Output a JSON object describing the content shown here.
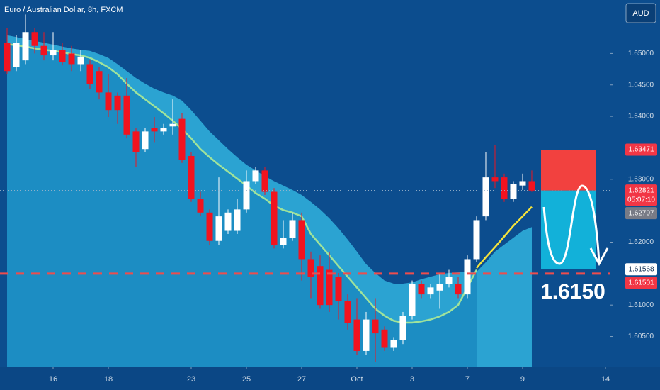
{
  "chart_data": {
    "type": "candlestick",
    "title": "Euro / Australian Dollar, 8h, FXCM",
    "currency": "AUD",
    "x": [
      0,
      1,
      2,
      3,
      4,
      5,
      6,
      7,
      8,
      9,
      10,
      11,
      12,
      13,
      14,
      15,
      16,
      17,
      18,
      19,
      20,
      21,
      22,
      23,
      24,
      25,
      26,
      27,
      28,
      29,
      30,
      31,
      32,
      33,
      34,
      35,
      36,
      37,
      38,
      39,
      40,
      41,
      42,
      43,
      44,
      45,
      46,
      47,
      48,
      49,
      50,
      51,
      52,
      53,
      54,
      55,
      56,
      57
    ],
    "open": [
      1.6517,
      1.6478,
      1.6489,
      1.6534,
      1.6512,
      1.6497,
      1.6506,
      1.65,
      1.6483,
      1.6483,
      1.6472,
      1.6438,
      1.6433,
      1.6433,
      1.6376,
      1.6348,
      1.6382,
      1.6376,
      1.6384,
      1.6396,
      1.6337,
      1.6269,
      1.6247,
      1.6202,
      1.6218,
      1.6218,
      1.6252,
      1.6297,
      1.6314,
      1.628,
      1.6196,
      1.6207,
      1.6235,
      1.6173,
      1.6162,
      1.6156,
      1.6145,
      1.6106,
      1.6077,
      1.6027,
      1.6077,
      1.6061,
      1.6032,
      1.6044,
      1.6083,
      1.6134,
      1.6117,
      1.6123,
      1.6134,
      1.6134,
      1.6117,
      1.6173,
      1.6241,
      1.6303,
      1.6303,
      1.6269,
      1.629,
      1.6297
    ],
    "high": [
      1.654,
      1.6529,
      1.6562,
      1.654,
      1.6534,
      1.6534,
      1.6517,
      1.6512,
      1.6506,
      1.6489,
      1.6478,
      1.6467,
      1.6438,
      1.6461,
      1.6382,
      1.6382,
      1.6399,
      1.6388,
      1.6427,
      1.6405,
      1.6343,
      1.628,
      1.6252,
      1.6303,
      1.6252,
      1.6269,
      1.6314,
      1.632,
      1.632,
      1.6286,
      1.6235,
      1.6247,
      1.6247,
      1.6185,
      1.6179,
      1.6185,
      1.6151,
      1.6117,
      1.6111,
      1.6089,
      1.6111,
      1.6066,
      1.6049,
      1.6089,
      1.6139,
      1.6139,
      1.6134,
      1.6151,
      1.6156,
      1.6145,
      1.6179,
      1.6241,
      1.6343,
      1.6354,
      1.6309,
      1.6297,
      1.6309,
      1.6314
    ],
    "low": [
      1.6467,
      1.6472,
      1.6483,
      1.65,
      1.6489,
      1.6489,
      1.6481,
      1.6472,
      1.6472,
      1.6444,
      1.6427,
      1.6399,
      1.6388,
      1.6365,
      1.632,
      1.6343,
      1.6359,
      1.6371,
      1.6371,
      1.6326,
      1.6264,
      1.6241,
      1.6196,
      1.6196,
      1.6213,
      1.6213,
      1.6247,
      1.6292,
      1.6275,
      1.619,
      1.619,
      1.6202,
      1.6139,
      1.6111,
      1.6094,
      1.6089,
      1.6077,
      1.6061,
      1.6021,
      1.6021,
      1.601,
      1.6027,
      1.6027,
      1.6038,
      1.6077,
      1.6111,
      1.6111,
      1.6094,
      1.6128,
      1.6111,
      1.6111,
      1.6168,
      1.6235,
      1.6286,
      1.6264,
      1.6264,
      1.6283,
      1.628
    ],
    "close": [
      1.6472,
      1.6517,
      1.6534,
      1.6512,
      1.6497,
      1.6506,
      1.6486,
      1.6483,
      1.6495,
      1.6452,
      1.6438,
      1.641,
      1.641,
      1.6371,
      1.6343,
      1.6376,
      1.6376,
      1.6382,
      1.6388,
      1.6331,
      1.6269,
      1.6247,
      1.6202,
      1.6241,
      1.6247,
      1.6252,
      1.6297,
      1.6314,
      1.628,
      1.6196,
      1.6207,
      1.6235,
      1.6173,
      1.6145,
      1.61,
      1.61,
      1.6106,
      1.6072,
      1.6027,
      1.6077,
      1.6055,
      1.6032,
      1.6044,
      1.6083,
      1.6134,
      1.6117,
      1.6128,
      1.6134,
      1.6145,
      1.6117,
      1.6173,
      1.6235,
      1.6303,
      1.6297,
      1.6269,
      1.6292,
      1.6297,
      1.6282
    ],
    "up_color": "#ffffff",
    "down_color": "#f2131f",
    "overlays": [
      {
        "type": "area",
        "color": "#2ba3d2",
        "values": [
          1.6529,
          1.6526,
          1.6523,
          1.652,
          1.6517,
          1.6514,
          1.6511,
          1.6508,
          1.6506,
          1.6504,
          1.6499,
          1.6493,
          1.6483,
          1.6472,
          1.6461,
          1.6452,
          1.6444,
          1.6438,
          1.6433,
          1.6425,
          1.641,
          1.6393,
          1.6376,
          1.6362,
          1.6348,
          1.6335,
          1.6323,
          1.6314,
          1.6305,
          1.6297,
          1.629,
          1.6283,
          1.6275,
          1.6264,
          1.6252,
          1.6238,
          1.6222,
          1.6204,
          1.6185,
          1.6165,
          1.6151,
          1.6139,
          1.6134,
          1.6134,
          1.6136,
          1.6141,
          1.6145,
          1.6149,
          1.6151,
          1.6152,
          1.6153,
          1.6153,
          1.6168,
          1.6185,
          1.6196,
          1.6207,
          1.6218,
          1.6224
        ]
      },
      {
        "type": "line",
        "color": "#9fe39b",
        "fill": "#1c8dc3",
        "values": [
          1.6515,
          1.6513,
          1.6511,
          1.6508,
          1.6506,
          1.6504,
          1.6502,
          1.6499,
          1.6497,
          1.6493,
          1.6486,
          1.6478,
          1.6467,
          1.6452,
          1.6438,
          1.6427,
          1.6416,
          1.6405,
          1.6393,
          1.638,
          1.6365,
          1.6348,
          1.6335,
          1.6323,
          1.6312,
          1.6301,
          1.629,
          1.6278,
          1.6269,
          1.6258,
          1.6251,
          1.6247,
          1.6241,
          1.6213,
          1.6196,
          1.6179,
          1.6162,
          1.6145,
          1.6128,
          1.6111,
          1.6094,
          1.6083,
          1.6075,
          1.6072,
          1.6072,
          1.6074,
          1.6077,
          1.6082,
          1.6089,
          1.61,
          1.6128,
          1.6156,
          null,
          null,
          null,
          null,
          null,
          null
        ]
      },
      {
        "type": "line",
        "color": "#f5e33c",
        "x": [
          51,
          52,
          53,
          54,
          55,
          56,
          57
        ],
        "values": [
          1.6159,
          1.6176,
          1.6192,
          1.6209,
          1.6226,
          1.6241,
          1.6256
        ]
      }
    ],
    "position": {
      "x": [
        58,
        64
      ],
      "stop": 1.63471,
      "entry": 1.62821,
      "target": 1.61568,
      "stop_color": "#f2413f",
      "target_color": "#12b1d9"
    },
    "target_line": {
      "value": 1.615,
      "label": "1.6150",
      "color": "#ee4d4d"
    },
    "price_labels": [
      {
        "value": 1.63471,
        "color": "#f23645"
      },
      {
        "value": 1.62821,
        "color": "#f23645"
      },
      {
        "value": 1.62797,
        "color": "#787b86"
      },
      {
        "value": 1.61568,
        "color": "#ffffff"
      },
      {
        "value": 1.61501,
        "color": "#f23645"
      }
    ],
    "countdown": "05:07:10",
    "xlim": [
      -0.77,
      65.54
    ],
    "ylim": [
      1.6001,
      1.6585
    ],
    "xticks": [
      {
        "value": 5,
        "label": "16"
      },
      {
        "value": 11,
        "label": "18"
      },
      {
        "value": 20,
        "label": "23"
      },
      {
        "value": 26,
        "label": "25"
      },
      {
        "value": 32,
        "label": "27"
      },
      {
        "value": 38,
        "label": "Oct"
      },
      {
        "value": 44,
        "label": "3"
      },
      {
        "value": 50,
        "label": "7"
      },
      {
        "value": 56,
        "label": "9"
      },
      {
        "value": 65,
        "label": "14"
      }
    ],
    "yticks": [
      {
        "value": 1.65,
        "label": "1.65000"
      },
      {
        "value": 1.645,
        "label": "1.64500"
      },
      {
        "value": 1.64,
        "label": "1.64000"
      },
      {
        "value": 1.63,
        "label": "1.63000"
      },
      {
        "value": 1.62,
        "label": "1.62000"
      },
      {
        "value": 1.61,
        "label": "1.61000"
      },
      {
        "value": 1.605,
        "label": "1.60500"
      }
    ]
  }
}
